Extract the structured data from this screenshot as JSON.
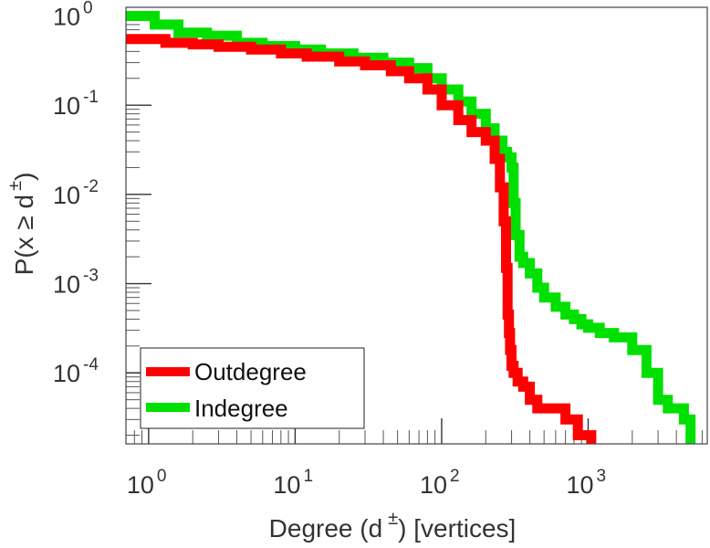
{
  "chart_data": {
    "type": "line",
    "scale": {
      "x": "log",
      "y": "log"
    },
    "xlabel": {
      "main": "Degree (d",
      "sup": "±",
      "tail": ") [vertices]"
    },
    "ylabel": {
      "main": "P(x ≥ d",
      "sup": "±",
      "tail": ")"
    },
    "xlim": [
      0.7,
      6500
    ],
    "ylim": [
      1.6e-05,
      1.25
    ],
    "x_ticks": [
      {
        "base": "10",
        "exp": "0",
        "value": 1
      },
      {
        "base": "10",
        "exp": "1",
        "value": 10
      },
      {
        "base": "10",
        "exp": "2",
        "value": 100
      },
      {
        "base": "10",
        "exp": "3",
        "value": 1000
      }
    ],
    "y_ticks": [
      {
        "base": "10",
        "exp": "0",
        "value": 1
      },
      {
        "base": "10",
        "exp": "-1",
        "value": 0.1
      },
      {
        "base": "10",
        "exp": "-2",
        "value": 0.01
      },
      {
        "base": "10",
        "exp": "-3",
        "value": 0.001
      },
      {
        "base": "10",
        "exp": "-4",
        "value": 0.0001
      }
    ],
    "legend": {
      "position": "bottom-left"
    },
    "series": [
      {
        "name": "Outdegree",
        "color": "#ff0000",
        "x": [
          0.7,
          1,
          1.3,
          2,
          3,
          5,
          8,
          12,
          20,
          30,
          45,
          60,
          80,
          100,
          130,
          160,
          200,
          230,
          250,
          265,
          275,
          282,
          288,
          293,
          300,
          310,
          330,
          360,
          400,
          450,
          500,
          600,
          700,
          850,
          1050
        ],
        "y": [
          0.55,
          0.55,
          0.5,
          0.48,
          0.45,
          0.42,
          0.38,
          0.35,
          0.31,
          0.28,
          0.24,
          0.2,
          0.15,
          0.1,
          0.068,
          0.05,
          0.04,
          0.025,
          0.012,
          0.005,
          0.0015,
          0.00045,
          0.00028,
          0.00018,
          0.00012,
          0.0001,
          8e-05,
          7e-05,
          5e-05,
          4e-05,
          4e-05,
          4e-05,
          3e-05,
          2e-05,
          1.6e-05
        ]
      },
      {
        "name": "Indegree",
        "color": "#00e000",
        "x": [
          0.7,
          1.1,
          1.6,
          2.5,
          4,
          6,
          10,
          15,
          25,
          40,
          60,
          80,
          100,
          130,
          160,
          200,
          230,
          260,
          280,
          300,
          310,
          320,
          340,
          360,
          400,
          450,
          500,
          600,
          700,
          800,
          900,
          1000,
          1200,
          1500,
          2000,
          2500,
          3000,
          3500,
          4000,
          4500,
          5000
        ],
        "y": [
          1,
          0.8,
          0.65,
          0.6,
          0.5,
          0.46,
          0.42,
          0.38,
          0.34,
          0.3,
          0.26,
          0.2,
          0.15,
          0.11,
          0.08,
          0.055,
          0.04,
          0.03,
          0.026,
          0.02,
          0.008,
          0.0035,
          0.002,
          0.0017,
          0.0013,
          0.0009,
          0.0007,
          0.00055,
          0.00045,
          0.0004,
          0.00035,
          0.00032,
          0.00028,
          0.00025,
          0.00018,
          0.0001,
          5e-05,
          4e-05,
          4e-05,
          3e-05,
          1.6e-05
        ]
      }
    ]
  }
}
